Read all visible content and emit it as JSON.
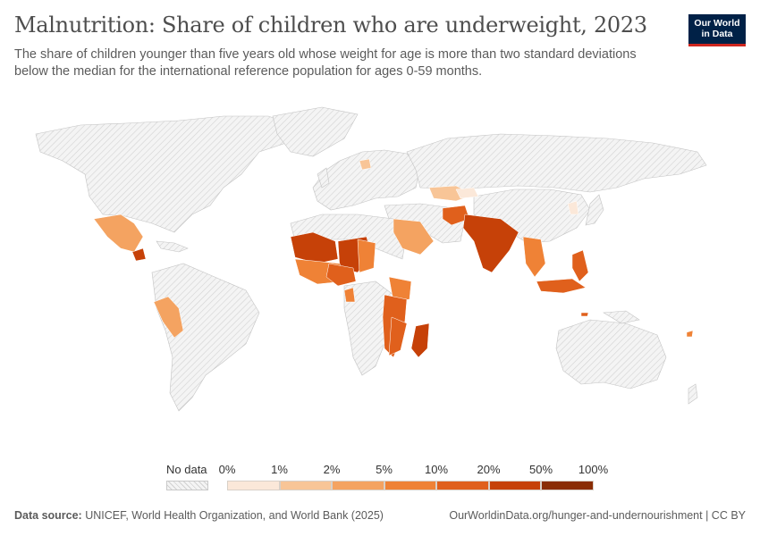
{
  "header": {
    "title": "Malnutrition: Share of children who are underweight, 2023",
    "subtitle": "The share of children younger than five years old whose weight for age is more than two standard deviations below the median for the international reference population for ages 0-59 months.",
    "logo_line1": "Our World",
    "logo_line2": "in Data"
  },
  "legend": {
    "no_data_label": "No data",
    "ticks": [
      "0%",
      "1%",
      "2%",
      "5%",
      "10%",
      "20%",
      "50%",
      "100%"
    ],
    "bins": [
      {
        "from": "0%",
        "to": "1%",
        "color": "#fbe8d9"
      },
      {
        "from": "1%",
        "to": "2%",
        "color": "#f8c597"
      },
      {
        "from": "2%",
        "to": "5%",
        "color": "#f4a361"
      },
      {
        "from": "5%",
        "to": "10%",
        "color": "#ef8236"
      },
      {
        "from": "10%",
        "to": "20%",
        "color": "#e0601c"
      },
      {
        "from": "20%",
        "to": "50%",
        "color": "#c64108"
      },
      {
        "from": "50%",
        "to": "100%",
        "color": "#8a2d04"
      }
    ]
  },
  "footer": {
    "source_label": "Data source:",
    "source_text": "UNICEF, World Health Organization, and World Bank (2025)",
    "url": "OurWorldinData.org/hunger-and-undernourishment | CC BY"
  },
  "colors": {
    "nodata_fill": "#f2f2f2",
    "nodata_hatch": "#d4d4d4",
    "border": "#bdbdbd"
  }
}
